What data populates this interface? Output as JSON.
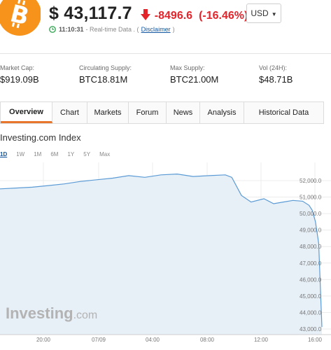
{
  "header": {
    "logo_icon": "bitcoin-logo-icon",
    "price": "$ 43,117.7",
    "change_icon": "arrow-down-icon",
    "change": "-8496.6",
    "change_pct": "(-16.46%)",
    "time": "11:10:31",
    "status_text": "- Real-time Data . (",
    "disclaimer": "Disclaimer",
    "status_end": ")",
    "currency": "USD"
  },
  "stats": [
    {
      "label": "Market Cap:",
      "value": "$919.09B"
    },
    {
      "label": "Circulating Supply:",
      "value": "BTC18.81M"
    },
    {
      "label": "Max Supply:",
      "value": "BTC21.00M"
    },
    {
      "label": "Vol (24H):",
      "value": "$48.71B"
    }
  ],
  "tabs": [
    {
      "label": "Overview",
      "active": true
    },
    {
      "label": "Chart"
    },
    {
      "label": "Markets"
    },
    {
      "label": "Forum"
    },
    {
      "label": "News"
    },
    {
      "label": "Analysis"
    },
    {
      "label": "Historical Data"
    }
  ],
  "index_title": "Investing.com Index",
  "ranges": [
    "1D",
    "1W",
    "1M",
    "6M",
    "1Y",
    "5Y",
    "Max"
  ],
  "active_range": "1D",
  "watermark": {
    "brand": "Investing",
    "suffix": ".com"
  },
  "colors": {
    "accent": "#e8762c",
    "negative": "#e3242b",
    "line": "#5b9bd5",
    "fill": "#e7eff7"
  },
  "chart_data": {
    "type": "area",
    "x_ticks": [
      "20:00",
      "07/09",
      "04:00",
      "08:00",
      "12:00",
      "16:00"
    ],
    "y_ticks": [
      "52,000.0",
      "51,000.0",
      "50,000.0",
      "49,000.0",
      "48,000.0",
      "47,000.0",
      "46,000.0",
      "45,000.0",
      "44,000.0",
      "43,000.0"
    ],
    "ylim": [
      43000,
      52500
    ],
    "grid": true,
    "series": [
      {
        "x": [
          0,
          5,
          10,
          15,
          20,
          25,
          30,
          35,
          40,
          45,
          50,
          55,
          60,
          65,
          70,
          72,
          75,
          78,
          82,
          85,
          88,
          91,
          94,
          96,
          97,
          98,
          99,
          100
        ],
        "values": [
          51500,
          51550,
          51600,
          51700,
          51800,
          51950,
          52050,
          52150,
          52300,
          52200,
          52350,
          52400,
          52250,
          52300,
          52350,
          52200,
          51100,
          50700,
          50900,
          50600,
          50700,
          50800,
          50750,
          50500,
          50200,
          49500,
          48200,
          43117.7
        ]
      }
    ]
  }
}
